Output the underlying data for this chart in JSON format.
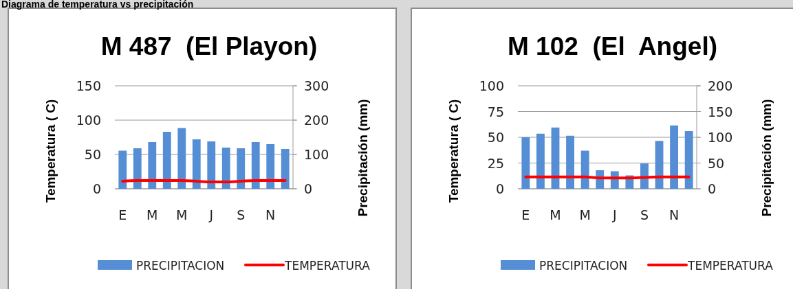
{
  "chart_data": [
    {
      "type": "bar",
      "title": "M 487  (El Playon)",
      "annotations": [
        "Diagrama de temperatura vs precipitación"
      ],
      "ylabel": "Temperatura ( C)",
      "y2label": "Precipitación (mm)",
      "categories": [
        "E",
        null,
        "M",
        null,
        "M",
        null,
        "J",
        null,
        "S",
        null,
        "N",
        null
      ],
      "ylim": [
        0,
        150
      ],
      "yticks": [
        0,
        50,
        100,
        150
      ],
      "y2lim": [
        0,
        300
      ],
      "y2ticks": [
        0,
        100,
        200,
        300
      ],
      "grid": "y",
      "legend": "bottom",
      "series": [
        {
          "name": "PRECIPITACION",
          "axis": "y2",
          "color": "#558ed5",
          "values": [
            111,
            118,
            136,
            166,
            177,
            144,
            138,
            120,
            118,
            136,
            130,
            116
          ]
        },
        {
          "name": "TEMPERATURA",
          "type": "line",
          "axis": "y",
          "color": "#ff0000",
          "values": [
            11,
            12,
            12,
            12,
            12,
            11,
            10,
            10,
            11,
            12,
            12,
            12
          ]
        }
      ]
    },
    {
      "type": "bar",
      "title": "M 102  (El  Angel)",
      "ylabel": "Temperatura ( C)",
      "y2label": "Precipitación (mm)",
      "categories": [
        "E",
        null,
        "M",
        null,
        "M",
        null,
        "J",
        null,
        "S",
        null,
        "N",
        null
      ],
      "ylim": [
        0,
        100
      ],
      "yticks": [
        0,
        25,
        50,
        75,
        100
      ],
      "y2lim": [
        0,
        200
      ],
      "y2ticks": [
        0,
        50,
        100,
        150,
        200
      ],
      "grid": "y",
      "legend": "bottom",
      "series": [
        {
          "name": "PRECIPITACION",
          "axis": "y2",
          "color": "#558ed5",
          "values": [
            100,
            107,
            119,
            103,
            74,
            36,
            34,
            26,
            49,
            93,
            123,
            112
          ]
        },
        {
          "name": "TEMPERATURA",
          "type": "line",
          "axis": "y",
          "color": "#ff0000",
          "values": [
            11.5,
            11.5,
            11.5,
            11.5,
            11.5,
            10.5,
            10.5,
            10.5,
            11,
            11.5,
            11.5,
            11.5
          ]
        }
      ]
    }
  ]
}
